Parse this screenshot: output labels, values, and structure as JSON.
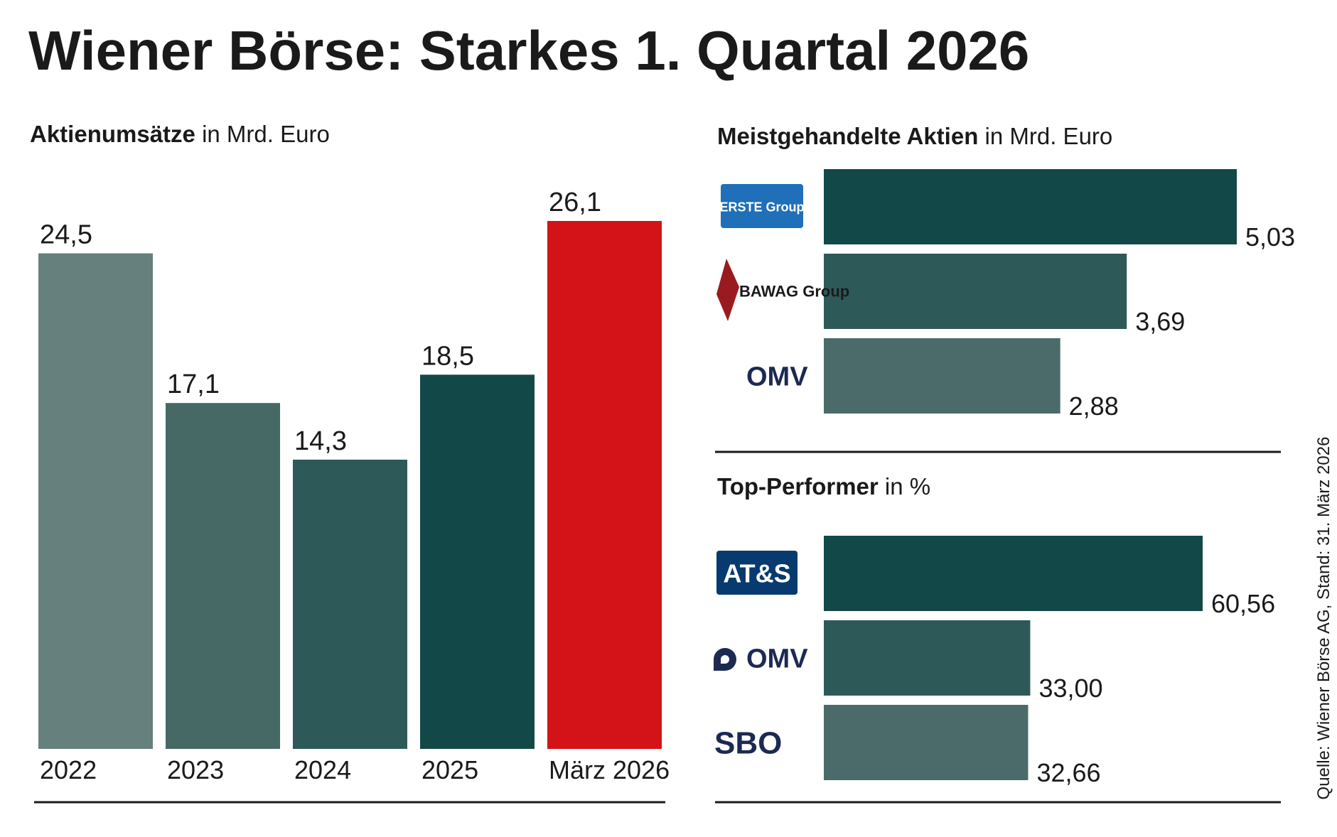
{
  "title": "Wiener Börse: Starkes 1. Quartal 2026",
  "source": "Quelle: Wiener Börse AG, Stand: 31. März 2026",
  "chart_data": [
    {
      "type": "bar",
      "title": "Aktienumsätze",
      "unit": "in Mrd. Euro",
      "categories": [
        "2022",
        "2023",
        "2024",
        "2025",
        "März 2026"
      ],
      "values": [
        24.5,
        17.1,
        14.3,
        18.5,
        26.1
      ],
      "value_labels": [
        "24,5",
        "17,1",
        "14,3",
        "18,5",
        "26,1"
      ],
      "colors": [
        "#66807d",
        "#466966",
        "#2d5a59",
        "#134849",
        "#d31317"
      ]
    },
    {
      "type": "hbar",
      "title": "Meistgehandelte Aktien",
      "unit": "in Mrd. Euro",
      "categories": [
        "ERSTE Group",
        "BAWAG Group",
        "OMV"
      ],
      "values": [
        5.03,
        3.69,
        2.88
      ],
      "value_labels": [
        "5,03",
        "3,69",
        "2,88"
      ],
      "colors": [
        "#134849",
        "#2d5a59",
        "#4a6b69"
      ]
    },
    {
      "type": "hbar",
      "title": "Top-Performer",
      "unit": "in %",
      "categories": [
        "AT&S",
        "OMV",
        "SBO"
      ],
      "values": [
        60.56,
        33.0,
        32.66
      ],
      "value_labels": [
        "60,56",
        "33,00",
        "32,66"
      ],
      "colors": [
        "#134849",
        "#2d5a59",
        "#4a6b69"
      ]
    }
  ]
}
